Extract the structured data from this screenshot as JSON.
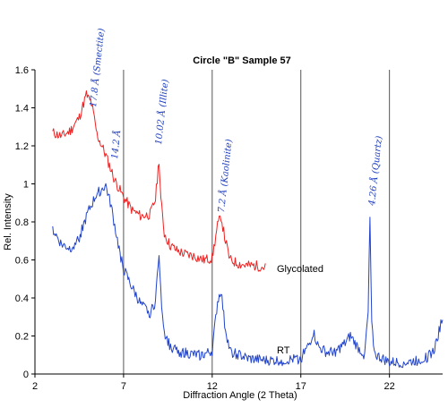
{
  "chart_data": {
    "type": "line",
    "title": "Circle \"B\" Sample 57",
    "xlabel": "Diffraction Angle (2 Theta)",
    "ylabel": "Rel. Intensity",
    "xlim": [
      2,
      25
    ],
    "ylim": [
      0,
      1.6
    ],
    "xticks": [
      2,
      7,
      12,
      17,
      22
    ],
    "yticks": [
      0,
      0.2,
      0.4,
      0.6,
      0.8,
      1,
      1.2,
      1.4,
      1.6
    ],
    "grid": false,
    "vertical_markers": [
      7,
      12,
      17,
      22
    ],
    "series": [
      {
        "name": "Glycolated",
        "color": "#ee2222",
        "x": [
          3.0,
          3.5,
          4.0,
          4.5,
          4.9,
          5.2,
          5.5,
          6.0,
          6.5,
          7.0,
          7.5,
          8.0,
          8.5,
          8.8,
          9.0,
          9.1,
          9.3,
          9.6,
          10.0,
          10.5,
          11.0,
          11.5,
          12.0,
          12.3,
          12.5,
          12.7,
          13.0,
          13.5,
          14.0,
          14.5,
          15.0
        ],
        "y": [
          1.27,
          1.25,
          1.28,
          1.35,
          1.47,
          1.42,
          1.26,
          1.15,
          1.02,
          0.93,
          0.86,
          0.83,
          0.84,
          0.92,
          1.13,
          0.92,
          0.74,
          0.68,
          0.65,
          0.63,
          0.62,
          0.6,
          0.61,
          0.78,
          0.83,
          0.72,
          0.6,
          0.58,
          0.57,
          0.57,
          0.56
        ]
      },
      {
        "name": "RT",
        "color": "#2244cc",
        "x": [
          3.0,
          3.5,
          4.0,
          4.5,
          5.0,
          5.5,
          6.0,
          6.3,
          6.7,
          7.0,
          7.5,
          8.0,
          8.5,
          8.8,
          9.0,
          9.1,
          9.3,
          9.6,
          10.0,
          10.5,
          11.0,
          11.5,
          12.0,
          12.3,
          12.5,
          12.7,
          13.0,
          14.0,
          15.0,
          16.0,
          17.0,
          17.5,
          17.7,
          18.0,
          18.5,
          19.0,
          19.5,
          19.8,
          20.2,
          20.6,
          20.8,
          20.9,
          21.0,
          21.2,
          22.0,
          23.0,
          24.0,
          24.5,
          25.0
        ],
        "y": [
          0.76,
          0.68,
          0.66,
          0.72,
          0.85,
          0.95,
          0.99,
          0.88,
          0.68,
          0.55,
          0.45,
          0.36,
          0.32,
          0.38,
          0.65,
          0.42,
          0.22,
          0.15,
          0.12,
          0.11,
          0.1,
          0.1,
          0.12,
          0.38,
          0.44,
          0.26,
          0.12,
          0.08,
          0.07,
          0.07,
          0.08,
          0.16,
          0.22,
          0.14,
          0.11,
          0.12,
          0.16,
          0.2,
          0.14,
          0.1,
          0.32,
          0.82,
          0.25,
          0.1,
          0.06,
          0.06,
          0.08,
          0.12,
          0.3
        ]
      }
    ],
    "series_labels": [
      "Glycolated",
      "RT"
    ],
    "annotations": [
      "17.8 Å (Smectite)",
      "14.2 Å",
      "10.02 Å (Illite)",
      "7.2 Å (Kaolinite)",
      "4.26 Å (Quartz)"
    ]
  }
}
